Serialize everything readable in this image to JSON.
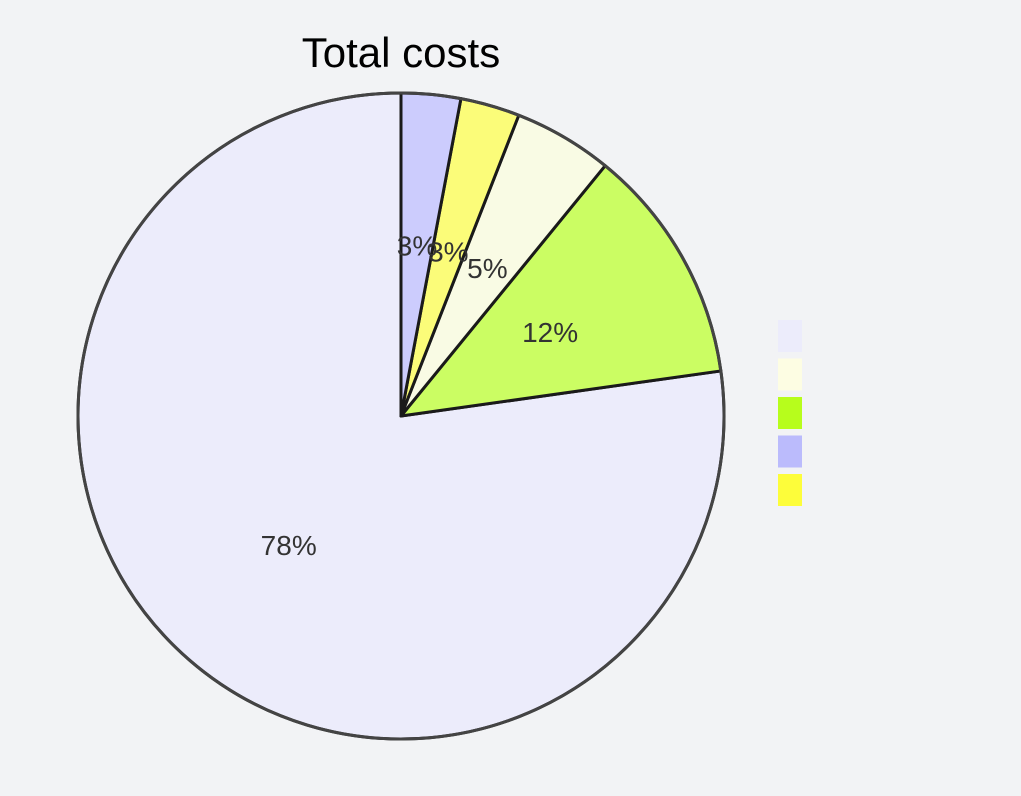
{
  "chart_data": {
    "type": "pie",
    "title": "Total costs",
    "start_angle": "12 o'clock",
    "direction": "counterclockwise",
    "legend_position": "right",
    "slices": [
      {
        "value": 78,
        "label": "78%",
        "color": "#ececfb"
      },
      {
        "value": 12,
        "label": "12%",
        "color": "#cbfd63"
      },
      {
        "value": 5,
        "label": "5%",
        "color": "#f9fbe4"
      },
      {
        "value": 3,
        "label": "3%",
        "color": "#fbfc79"
      },
      {
        "value": 3,
        "label": "3%",
        "color": "#ccccfd"
      }
    ],
    "legend_swatches": [
      "#ececfb",
      "#fdfde3",
      "#b7fd1c",
      "#bbbbfc",
      "#fdfd3a"
    ]
  }
}
